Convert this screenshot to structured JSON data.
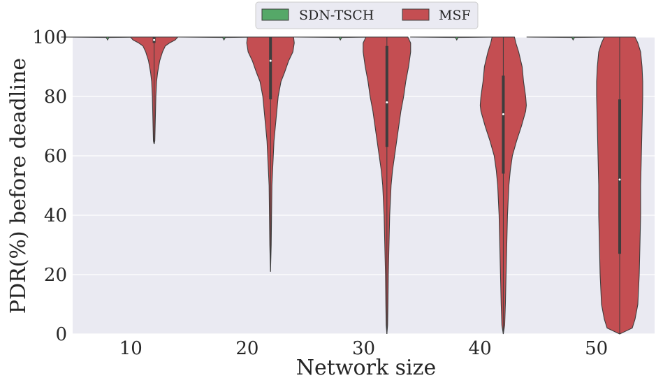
{
  "chart_data": {
    "type": "violin",
    "xlabel": "Network size",
    "ylabel": "PDR(%) before deadline",
    "ylim": [
      0,
      100
    ],
    "yticks": [
      0,
      20,
      40,
      60,
      80,
      100
    ],
    "categories": [
      "10",
      "20",
      "30",
      "40",
      "50"
    ],
    "grid": true,
    "legend_position": "top-center",
    "series": [
      {
        "name": "SDN-TSCH",
        "color": "#55a868",
        "summary": [
          {
            "min": 99,
            "q1": 100,
            "median": 100,
            "q3": 100,
            "max": 100
          },
          {
            "min": 99,
            "q1": 100,
            "median": 100,
            "q3": 100,
            "max": 100
          },
          {
            "min": 99,
            "q1": 100,
            "median": 100,
            "q3": 100,
            "max": 100
          },
          {
            "min": 99,
            "q1": 100,
            "median": 100,
            "q3": 100,
            "max": 100
          },
          {
            "min": 99,
            "q1": 100,
            "median": 100,
            "q3": 100,
            "max": 100
          }
        ]
      },
      {
        "name": "MSF",
        "color": "#c44e52",
        "summary": [
          {
            "min": 64,
            "q1": 98,
            "median": 99,
            "q3": 100,
            "max": 100
          },
          {
            "min": 21,
            "q1": 79,
            "median": 92,
            "q3": 100,
            "max": 100
          },
          {
            "min": 0,
            "q1": 63,
            "median": 78,
            "q3": 97,
            "max": 100
          },
          {
            "min": 0,
            "q1": 54,
            "median": 74,
            "q3": 87,
            "max": 100
          },
          {
            "min": 0,
            "q1": 27,
            "median": 52,
            "q3": 79,
            "max": 100
          }
        ],
        "density_profiles": [
          [
            [
              100,
              34
            ],
            [
              99,
              30
            ],
            [
              98,
              22
            ],
            [
              97,
              16
            ],
            [
              95,
              12
            ],
            [
              92,
              8
            ],
            [
              88,
              5
            ],
            [
              85,
              3.5
            ],
            [
              80,
              2.5
            ],
            [
              75,
              2
            ],
            [
              70,
              1.5
            ],
            [
              65,
              1
            ],
            [
              64,
              0
            ]
          ],
          [
            [
              100,
              33
            ],
            [
              98,
              34
            ],
            [
              95,
              32
            ],
            [
              92,
              26
            ],
            [
              88,
              20
            ],
            [
              85,
              15
            ],
            [
              80,
              11
            ],
            [
              75,
              9
            ],
            [
              70,
              7
            ],
            [
              65,
              5
            ],
            [
              60,
              4
            ],
            [
              55,
              3
            ],
            [
              50,
              2
            ],
            [
              40,
              1.5
            ],
            [
              30,
              1
            ],
            [
              21,
              0
            ]
          ],
          [
            [
              100,
              30
            ],
            [
              98,
              34
            ],
            [
              95,
              34
            ],
            [
              90,
              31
            ],
            [
              85,
              27
            ],
            [
              80,
              24
            ],
            [
              75,
              20
            ],
            [
              70,
              17
            ],
            [
              65,
              14
            ],
            [
              60,
              11
            ],
            [
              55,
              8
            ],
            [
              50,
              6
            ],
            [
              45,
              5
            ],
            [
              40,
              4
            ],
            [
              30,
              3
            ],
            [
              20,
              2
            ],
            [
              10,
              1.5
            ],
            [
              3,
              1
            ],
            [
              0,
              0
            ]
          ],
          [
            [
              100,
              16
            ],
            [
              98,
              18
            ],
            [
              95,
              22
            ],
            [
              90,
              27
            ],
            [
              85,
              29
            ],
            [
              80,
              32
            ],
            [
              77,
              33
            ],
            [
              75,
              32
            ],
            [
              70,
              26
            ],
            [
              65,
              19
            ],
            [
              60,
              13
            ],
            [
              55,
              10
            ],
            [
              50,
              8
            ],
            [
              45,
              7
            ],
            [
              40,
              6
            ],
            [
              30,
              5
            ],
            [
              20,
              4
            ],
            [
              10,
              3
            ],
            [
              3,
              2
            ],
            [
              0,
              0
            ]
          ],
          [
            [
              100,
              22
            ],
            [
              98,
              26
            ],
            [
              95,
              30
            ],
            [
              90,
              32
            ],
            [
              85,
              33
            ],
            [
              80,
              33
            ],
            [
              70,
              32
            ],
            [
              60,
              31
            ],
            [
              50,
              30
            ],
            [
              40,
              30
            ],
            [
              30,
              29
            ],
            [
              20,
              28
            ],
            [
              10,
              26
            ],
            [
              5,
              22
            ],
            [
              2,
              18
            ],
            [
              0,
              0
            ]
          ]
        ]
      }
    ]
  }
}
